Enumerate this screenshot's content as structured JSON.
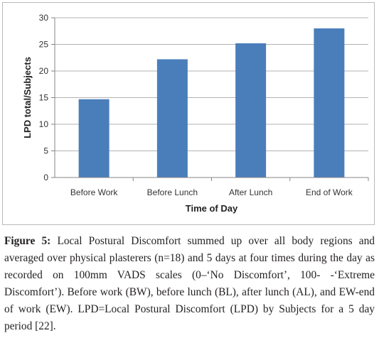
{
  "chart_data": {
    "type": "bar",
    "categories": [
      "Before Work",
      "Before Lunch",
      "After Lunch",
      "End of Work"
    ],
    "values": [
      14.7,
      22.2,
      25.2,
      28.0
    ],
    "xlabel": "Time of Day",
    "ylabel": "LPD total/Subjects",
    "ylim": [
      0,
      30
    ],
    "yticks": [
      0,
      5,
      10,
      15,
      20,
      25,
      30
    ],
    "grid": true,
    "legend": "none",
    "bar_color": "#4a7ebb"
  },
  "caption": {
    "label": "Figure 5:",
    "text": "Local Postural Discomfort summed up over all body regions and averaged over physical plasterers (n=18) and 5 days at four times during the day as recorded on 100mm VADS scales (0–‘No Discomfort’, 100- -‘Extreme Discomfort’). Before work (BW), before lunch (BL), after lunch (AL), and EW-end of work (EW). LPD=Local Postural Discomfort (LPD) by Subjects for a 5 day period [22]."
  }
}
